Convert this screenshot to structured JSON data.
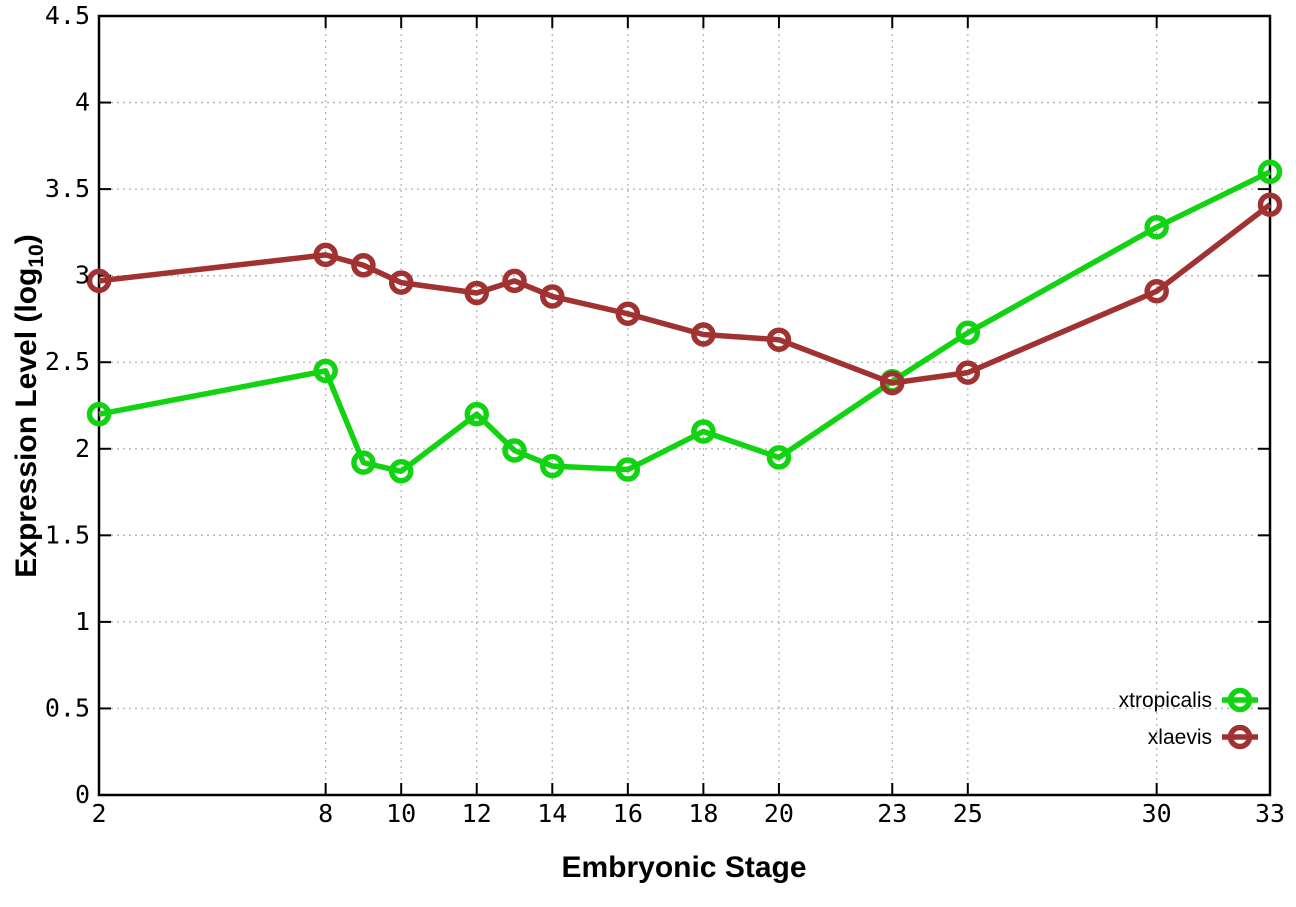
{
  "chart_data": {
    "type": "line",
    "title": "",
    "xlabel": "Embryonic Stage",
    "ylabel": {
      "prefix": "Expression Level (log",
      "subscript": "10",
      "suffix": ")"
    },
    "xlim": [
      2,
      33
    ],
    "ylim": [
      0,
      4.5
    ],
    "x": [
      2,
      8,
      9,
      10,
      12,
      13,
      14,
      16,
      18,
      20,
      23,
      25,
      30,
      33
    ],
    "xticks": [
      2,
      8,
      10,
      12,
      14,
      16,
      18,
      20,
      23,
      25,
      30,
      33
    ],
    "yticks": [
      0,
      0.5,
      1,
      1.5,
      2,
      2.5,
      3,
      3.5,
      4,
      4.5
    ],
    "grid": true,
    "legend_position": "bottom-right",
    "series": [
      {
        "name": "xtropicalis",
        "color": "#12D312",
        "marker": "open-circle",
        "values": [
          2.2,
          2.45,
          1.92,
          1.87,
          2.2,
          1.99,
          1.9,
          1.88,
          2.1,
          1.95,
          2.39,
          2.67,
          3.28,
          3.6
        ]
      },
      {
        "name": "xlaevis",
        "color": "#A03232",
        "marker": "open-circle",
        "values": [
          2.97,
          3.12,
          3.06,
          2.96,
          2.9,
          2.97,
          2.88,
          2.78,
          2.66,
          2.63,
          2.38,
          2.44,
          2.91,
          3.41
        ]
      }
    ],
    "style": {
      "background": "#ffffff",
      "axis_color": "#000000",
      "grid_color": "#b5b5b5"
    }
  }
}
